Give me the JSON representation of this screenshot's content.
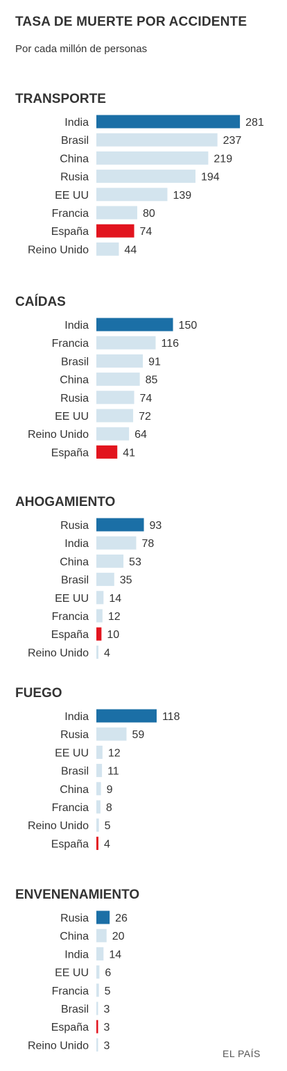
{
  "header": {
    "title": "TASA DE MUERTE POR ACCIDENTE",
    "subtitle": "Por cada millón de personas"
  },
  "credit": "EL PAÍS",
  "colors": {
    "top": "#1b6fa6",
    "spain": "#e2141e",
    "other": "#d3e4ee"
  },
  "chart_data": [
    {
      "type": "bar",
      "title": "TRANSPORTE",
      "categories": [
        "India",
        "Brasil",
        "China",
        "Rusia",
        "EE UU",
        "Francia",
        "España",
        "Reino Unido"
      ],
      "values": [
        281,
        237,
        219,
        194,
        139,
        80,
        74,
        44
      ]
    },
    {
      "type": "bar",
      "title": "CAÍDAS",
      "categories": [
        "India",
        "Francia",
        "Brasil",
        "China",
        "Rusia",
        "EE UU",
        "Reino Unido",
        "España"
      ],
      "values": [
        150,
        116,
        91,
        85,
        74,
        72,
        64,
        41
      ]
    },
    {
      "type": "bar",
      "title": "AHOGAMIENTO",
      "categories": [
        "Rusia",
        "India",
        "China",
        "Brasil",
        "EE UU",
        "Francia",
        "España",
        "Reino Unido"
      ],
      "values": [
        93,
        78,
        53,
        35,
        14,
        12,
        10,
        4
      ]
    },
    {
      "type": "bar",
      "title": "FUEGO",
      "categories": [
        "India",
        "Rusia",
        "EE UU",
        "Brasil",
        "China",
        "Francia",
        "Reino Unido",
        "España"
      ],
      "values": [
        118,
        59,
        12,
        11,
        9,
        8,
        5,
        4
      ]
    },
    {
      "type": "bar",
      "title": "ENVENENAMIENTO",
      "categories": [
        "Rusia",
        "China",
        "India",
        "EE UU",
        "Francia",
        "Brasil",
        "España",
        "Reino Unido"
      ],
      "values": [
        26,
        20,
        14,
        6,
        5,
        3,
        3,
        3
      ]
    }
  ]
}
